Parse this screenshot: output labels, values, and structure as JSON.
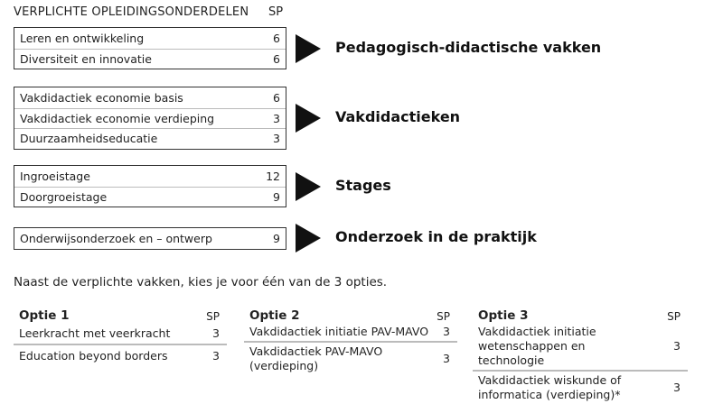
{
  "header": {
    "title": "VERPLICHTE OPLEIDINGSONDERDELEN",
    "sp": "SP"
  },
  "groups": [
    {
      "category": "Pedagogisch-didactische vakken",
      "items": [
        {
          "name": "Leren en ontwikkeling",
          "sp": "6"
        },
        {
          "name": "Diversiteit en innovatie",
          "sp": "6"
        }
      ]
    },
    {
      "category": "Vakdidactieken",
      "items": [
        {
          "name": "Vakdidactiek economie basis",
          "sp": "6"
        },
        {
          "name": "Vakdidactiek economie verdieping",
          "sp": "3"
        },
        {
          "name": "Duurzaamheidseducatie",
          "sp": "3"
        }
      ]
    },
    {
      "category": "Stages",
      "items": [
        {
          "name": "Ingroeistage",
          "sp": "12"
        },
        {
          "name": "Doorgroeistage",
          "sp": "9"
        }
      ]
    },
    {
      "category": "Onderzoek in de praktijk",
      "items": [
        {
          "name": "Onderwijsonderzoek en – ontwerp",
          "sp": "9"
        }
      ]
    }
  ],
  "intro": "Naast de verplichte vakken, kies je voor één van de 3 opties.",
  "options": [
    {
      "title": "Optie 1",
      "sp": "SP",
      "items": [
        {
          "name": "Leerkracht met veerkracht",
          "sp": "3"
        },
        {
          "name": "Education beyond borders",
          "sp": "3"
        }
      ]
    },
    {
      "title": "Optie 2",
      "sp": "SP",
      "items": [
        {
          "name": "Vakdidactiek initiatie PAV-MAVO",
          "sp": "3"
        },
        {
          "name": "Vakdidactiek PAV-MAVO (verdieping)",
          "sp": "3"
        }
      ]
    },
    {
      "title": "Optie 3",
      "sp": "SP",
      "items": [
        {
          "name": "Vakdidactiek initiatie wetenschappen en technologie",
          "sp": "3"
        },
        {
          "name": "Vakdidactiek wiskunde of informatica (verdieping)*",
          "sp": "3"
        }
      ]
    }
  ]
}
